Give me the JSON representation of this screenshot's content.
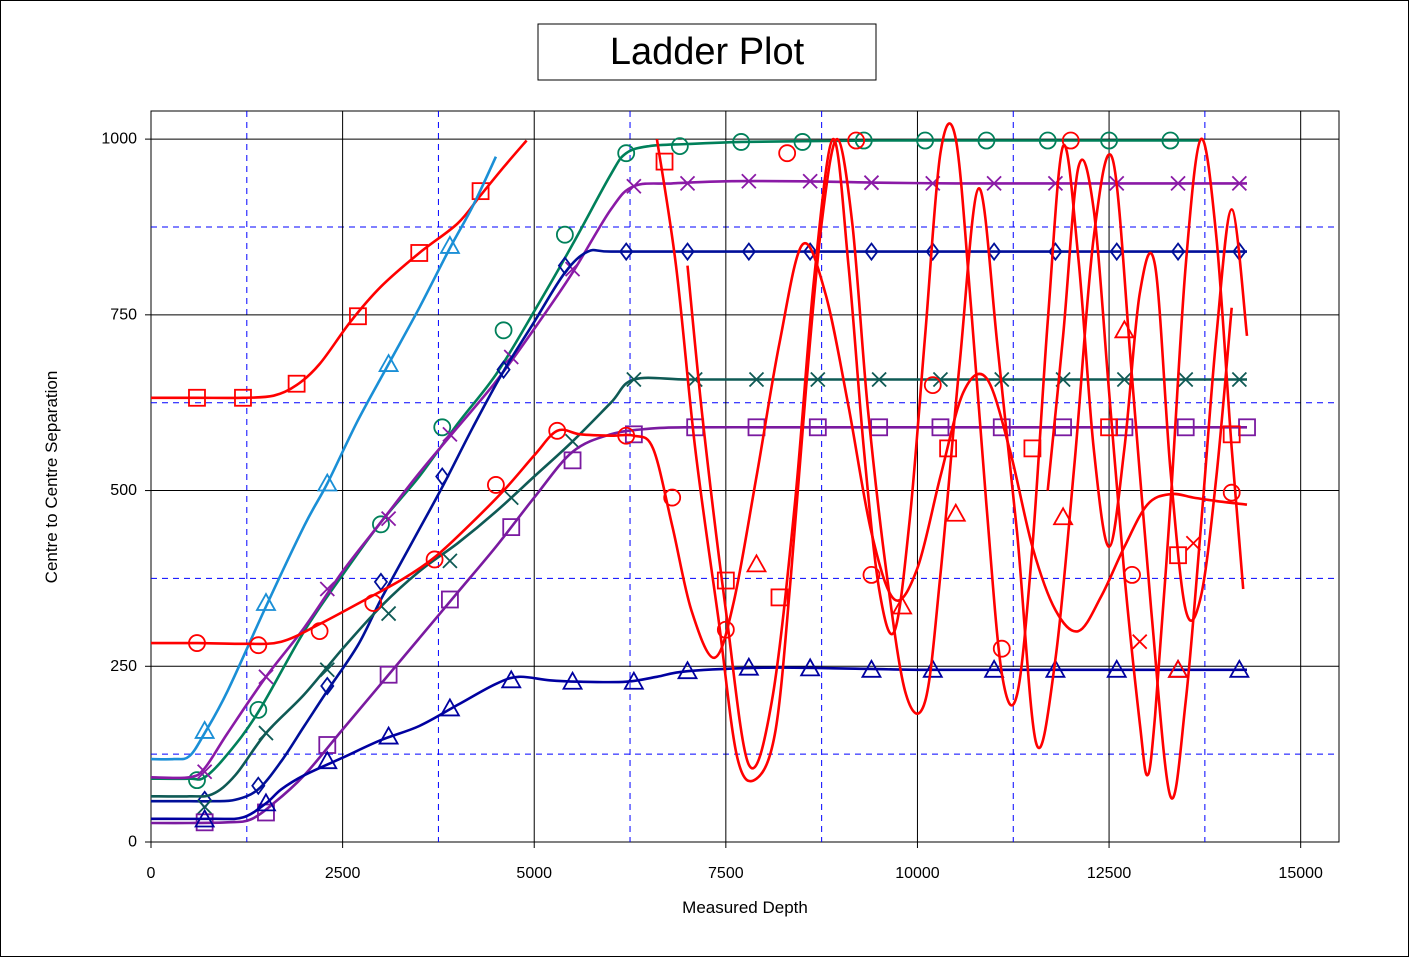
{
  "chart_data": {
    "type": "line",
    "title": "Ladder Plot",
    "xlabel": "Measured Depth",
    "ylabel": "Centre to Centre Separation",
    "xlim": [
      0,
      15500
    ],
    "ylim": [
      0,
      1040
    ],
    "xticks": [
      0,
      2500,
      5000,
      7500,
      10000,
      12500,
      15000
    ],
    "xtick_labels": [
      "0",
      "2500",
      "5000",
      "7500",
      "10000",
      "12500",
      "15000"
    ],
    "yticks": [
      0,
      250,
      500,
      750,
      1000
    ],
    "ytick_labels": [
      "0",
      "250",
      "500",
      "750",
      "1000"
    ],
    "xminor_dashed": [
      1250,
      3750,
      6250,
      8750,
      11250,
      13750
    ],
    "yminor_dashed": [
      125,
      375,
      625,
      875
    ],
    "grid": true,
    "legend": "none",
    "series": [
      {
        "color": "#ff0000",
        "marker": "square",
        "x": [
          0,
          600,
          1200,
          1600,
          1900,
          2200,
          2600,
          3000,
          3500,
          4000,
          4300,
          4600,
          4900
        ],
        "y": [
          632,
          632,
          632,
          635,
          650,
          680,
          740,
          790,
          838,
          880,
          920,
          960,
          998
        ],
        "mx": [
          600,
          1200,
          1900,
          2700,
          3500,
          4300
        ],
        "my": [
          632,
          632,
          652,
          748,
          838,
          926
        ]
      },
      {
        "color": "#1a8fd6",
        "marker": "triangle",
        "x": [
          0,
          300,
          500,
          700,
          1000,
          1500,
          2000,
          2300,
          2700,
          3100,
          3500,
          3900,
          4200,
          4500
        ],
        "y": [
          118,
          118,
          122,
          155,
          215,
          335,
          450,
          510,
          600,
          680,
          760,
          845,
          905,
          975
        ],
        "mx": [
          700,
          1500,
          2300,
          3100,
          3900
        ],
        "my": [
          158,
          340,
          510,
          680,
          848
        ]
      },
      {
        "color": "#00805a",
        "marker": "circle",
        "x": [
          0,
          500,
          700,
          1000,
          1400,
          2000,
          2500,
          3000,
          3500,
          4000,
          4500,
          5000,
          5500,
          6000,
          6200,
          6500,
          7000,
          7700,
          8500,
          9500,
          10500,
          11500,
          12500,
          13200,
          13700
        ],
        "y": [
          90,
          90,
          92,
          125,
          185,
          300,
          380,
          455,
          520,
          595,
          665,
          755,
          850,
          950,
          980,
          990,
          993,
          996,
          997,
          998,
          998,
          998,
          998,
          998,
          998
        ],
        "mx": [
          600,
          1400,
          3000,
          3800,
          4600,
          5400,
          6200,
          6900,
          7700,
          8500,
          9300,
          10100,
          10900,
          11700,
          12500,
          13300
        ],
        "my": [
          88,
          188,
          452,
          590,
          728,
          864,
          980,
          990,
          996,
          996,
          998,
          998,
          998,
          998,
          998,
          998
        ]
      },
      {
        "color": "#8a1aa6",
        "marker": "x",
        "x": [
          0,
          500,
          700,
          1000,
          1500,
          2000,
          2500,
          3000,
          3500,
          4000,
          4500,
          5000,
          5500,
          6000,
          6300,
          6800,
          7500,
          8500,
          9500,
          10500,
          11500,
          12500,
          13500,
          14300
        ],
        "y": [
          92,
          92,
          105,
          155,
          235,
          305,
          385,
          455,
          525,
          590,
          655,
          730,
          810,
          900,
          933,
          937,
          940,
          940,
          938,
          937,
          937,
          937,
          937,
          937
        ],
        "mx": [
          700,
          1500,
          2300,
          3100,
          3900,
          4700,
          5500,
          6300,
          7000,
          7800,
          8600,
          9400,
          10200,
          11000,
          11800,
          12600,
          13400,
          14200
        ],
        "my": [
          100,
          235,
          360,
          460,
          580,
          690,
          815,
          933,
          937,
          940,
          940,
          938,
          937,
          937,
          937,
          937,
          937,
          937
        ]
      },
      {
        "color": "#000f99",
        "marker": "diamond",
        "x": [
          0,
          500,
          800,
          1100,
          1400,
          1700,
          2000,
          2300,
          2700,
          3000,
          3400,
          3800,
          4200,
          4600,
          5000,
          5400,
          5700,
          6000,
          7000,
          8000,
          9000,
          10000,
          11000,
          12000,
          13000,
          14300
        ],
        "y": [
          58,
          58,
          58,
          60,
          75,
          115,
          165,
          215,
          280,
          345,
          425,
          505,
          590,
          670,
          740,
          810,
          840,
          840,
          840,
          840,
          840,
          840,
          840,
          840,
          840,
          840
        ],
        "mx": [
          700,
          1400,
          2300,
          3000,
          3800,
          4600,
          5400,
          6200,
          7000,
          7800,
          8600,
          9400,
          10200,
          11000,
          11800,
          12600,
          13400,
          14200
        ],
        "my": [
          60,
          80,
          222,
          370,
          520,
          672,
          820,
          840,
          840,
          840,
          840,
          840,
          840,
          840,
          840,
          840,
          840,
          840
        ]
      },
      {
        "color": "#0f5a55",
        "marker": "x",
        "x": [
          0,
          500,
          800,
          1100,
          1500,
          2000,
          2500,
          3000,
          3500,
          4000,
          4500,
          5000,
          5500,
          6000,
          6300,
          7000,
          8000,
          9000,
          10000,
          11000,
          12000,
          13000,
          14300
        ],
        "y": [
          65,
          65,
          68,
          95,
          155,
          210,
          275,
          335,
          385,
          425,
          470,
          520,
          570,
          625,
          658,
          658,
          658,
          658,
          658,
          658,
          658,
          658,
          658
        ],
        "mx": [
          700,
          1500,
          2300,
          3100,
          3900,
          4700,
          5500,
          6300,
          7100,
          7900,
          8700,
          9500,
          10300,
          11100,
          11900,
          12700,
          13500,
          14200
        ],
        "my": [
          50,
          155,
          245,
          325,
          400,
          490,
          570,
          658,
          658,
          658,
          658,
          658,
          658,
          658,
          658,
          658,
          658,
          658
        ]
      },
      {
        "color": "#7a1aa0",
        "marker": "square",
        "x": [
          0,
          500,
          1000,
          1300,
          1600,
          2000,
          2500,
          3000,
          3500,
          4000,
          4500,
          5000,
          5500,
          6000,
          6500,
          7000,
          8000,
          9000,
          10000,
          11000,
          12000,
          13000,
          14300
        ],
        "y": [
          27,
          27,
          28,
          32,
          55,
          95,
          160,
          225,
          290,
          355,
          420,
          490,
          555,
          580,
          588,
          590,
          590,
          590,
          590,
          590,
          590,
          590,
          590
        ],
        "mx": [
          700,
          1500,
          2300,
          3100,
          3900,
          4700,
          5500,
          6300,
          7100,
          7900,
          8700,
          9500,
          10300,
          11100,
          11900,
          12700,
          13500,
          14300
        ],
        "my": [
          28,
          42,
          138,
          238,
          345,
          448,
          543,
          580,
          590,
          590,
          590,
          590,
          590,
          590,
          590,
          590,
          590,
          590
        ]
      },
      {
        "color": "#0000a0",
        "marker": "triangle",
        "x": [
          0,
          800,
          1200,
          1500,
          1700,
          2000,
          2500,
          3000,
          3500,
          4000,
          4500,
          4800,
          5200,
          5600,
          6200,
          6600,
          7000,
          8000,
          9000,
          10000,
          11000,
          12000,
          13000,
          14300
        ],
        "y": [
          33,
          33,
          35,
          55,
          75,
          95,
          120,
          145,
          165,
          195,
          225,
          235,
          230,
          228,
          228,
          235,
          243,
          248,
          247,
          245,
          245,
          245,
          245,
          245
        ],
        "mx": [
          700,
          1500,
          2300,
          3100,
          3900,
          4700,
          5500,
          6300,
          7000,
          7800,
          8600,
          9400,
          10200,
          11000,
          11800,
          12600,
          13400,
          14200
        ],
        "my": [
          32,
          55,
          115,
          150,
          190,
          230,
          228,
          228,
          243,
          248,
          247,
          245,
          245,
          245,
          245,
          245,
          245,
          245
        ]
      },
      {
        "color": "#ff0000",
        "marker": "circle",
        "x": [
          0,
          600,
          1200,
          1700,
          2200,
          2800,
          3300,
          3700,
          4100,
          4600,
          5000,
          5300,
          5600,
          6000,
          6300,
          6550,
          6800,
          7050,
          7350,
          7600,
          7900,
          8200,
          8500,
          8800,
          9100,
          9400,
          9700,
          10000,
          10300,
          10600,
          10900,
          11200,
          11500,
          11800,
          12100,
          12400,
          12700,
          13000,
          13300,
          13600,
          13900,
          14300
        ],
        "y": [
          283,
          283,
          282,
          285,
          310,
          345,
          375,
          405,
          445,
          500,
          550,
          585,
          580,
          578,
          578,
          560,
          450,
          330,
          262,
          340,
          520,
          710,
          850,
          780,
          620,
          440,
          345,
          390,
          520,
          640,
          660,
          560,
          420,
          330,
          300,
          350,
          420,
          480,
          495,
          490,
          485,
          480
        ],
        "mx": [
          600,
          1400,
          2200,
          2900,
          3700,
          4500,
          5300,
          6200,
          6800,
          7500,
          8300,
          9200,
          9400,
          10200,
          11100,
          12000,
          12800,
          14100
        ],
        "my": [
          283,
          280,
          300,
          340,
          402,
          508,
          585,
          578,
          490,
          302,
          980,
          998,
          380,
          650,
          275,
          998,
          380,
          497
        ]
      },
      {
        "color": "#ff0000",
        "marker": "square",
        "x": [
          6600,
          6850,
          7100,
          7400,
          7650,
          7900,
          8150,
          8350,
          8550,
          8750,
          8950,
          9150,
          9350,
          9600,
          9850,
          10100,
          10300,
          10550,
          10800,
          11050,
          11300,
          11550,
          11800,
          12050,
          12300,
          12550,
          12800,
          13050,
          13300,
          13500,
          13700,
          13900,
          14100,
          14300
        ],
        "y": [
          1000,
          820,
          560,
          320,
          120,
          90,
          160,
          380,
          650,
          880,
          1000,
          880,
          620,
          380,
          210,
          200,
          380,
          680,
          930,
          700,
          440,
          140,
          260,
          540,
          860,
          970,
          660,
          330,
          65,
          200,
          450,
          720,
          900,
          720
        ],
        "mx": [
          6700,
          7500,
          8200,
          10400,
          11500,
          12500,
          13400,
          14100
        ],
        "my": [
          968,
          372,
          348,
          560,
          560,
          590,
          408,
          580
        ]
      },
      {
        "color": "#ff0000",
        "marker": "triangle",
        "x": [
          7000,
          7200,
          7500,
          7800,
          8100,
          8400,
          8650,
          8900,
          9100,
          9300,
          9500,
          9700,
          9900,
          10100,
          10300,
          10500,
          10700,
          10900,
          11100,
          11300,
          11500,
          11700,
          11900,
          12100,
          12300,
          12500,
          12700,
          12900,
          13100,
          13300,
          13500,
          13700,
          13900,
          14100
        ],
        "y": [
          820,
          600,
          330,
          110,
          200,
          480,
          800,
          1000,
          820,
          560,
          360,
          300,
          460,
          720,
          980,
          1000,
          760,
          480,
          240,
          210,
          420,
          740,
          990,
          830,
          560,
          420,
          560,
          780,
          820,
          530,
          330,
          350,
          520,
          760
        ],
        "mx": [
          7900,
          9800,
          10500,
          11900,
          12700,
          13400
        ],
        "my": [
          395,
          335,
          467,
          462,
          728,
          245
        ]
      },
      {
        "color": "#ff0000",
        "marker": "x",
        "x": [
          11700,
          11900,
          12100,
          12300,
          12500,
          12700,
          12900,
          13000,
          13100,
          13300,
          13500,
          13700,
          13900,
          14100,
          14250
        ],
        "y": [
          500,
          720,
          960,
          900,
          640,
          380,
          170,
          95,
          180,
          480,
          820,
          1000,
          860,
          560,
          360
        ],
        "mx": [
          12900,
          13600
        ],
        "my": [
          285,
          425
        ]
      }
    ]
  }
}
